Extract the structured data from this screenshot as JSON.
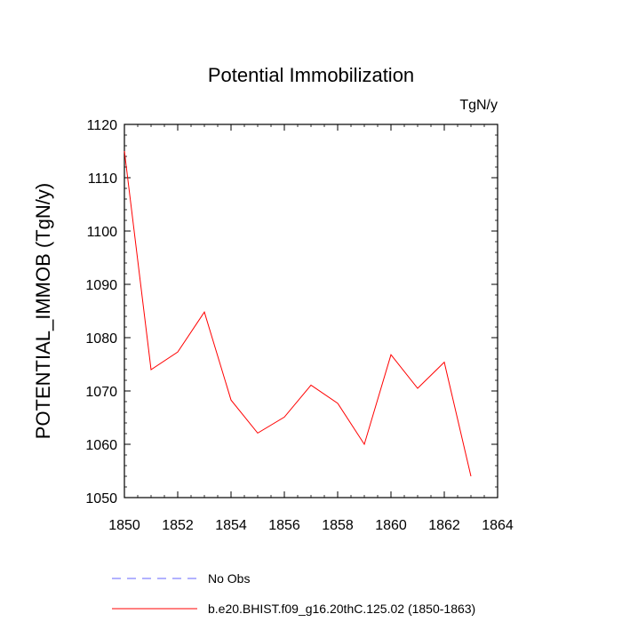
{
  "chart_data": {
    "type": "line",
    "title": "Potential Immobilization",
    "units_label": "TgN/y",
    "xlabel": "",
    "ylabel": "POTENTIAL_IMMOB  (TgN/y)",
    "xlim": [
      1850,
      1864
    ],
    "ylim": [
      1050,
      1120
    ],
    "x_ticks": [
      "1850",
      "1852",
      "1854",
      "1856",
      "1858",
      "1860",
      "1862",
      "1864"
    ],
    "y_ticks": [
      "1050",
      "1060",
      "1070",
      "1080",
      "1090",
      "1100",
      "1110",
      "1120"
    ],
    "series": [
      {
        "name": "b.e20.BHIST.f09_g16.20thC.125.02 (1850-1863)",
        "color": "#ff0000",
        "style": "solid",
        "x": [
          1850,
          1851,
          1852,
          1853,
          1854,
          1855,
          1856,
          1857,
          1858,
          1859,
          1860,
          1861,
          1862,
          1863
        ],
        "values": [
          1115.0,
          1074.0,
          1077.3,
          1084.8,
          1068.3,
          1062.1,
          1065.1,
          1071.1,
          1067.7,
          1060.0,
          1076.8,
          1070.5,
          1075.4,
          1054.0
        ]
      }
    ],
    "legend": [
      {
        "label": "No Obs",
        "color": "#6666ff",
        "style": "dashed"
      },
      {
        "label": "b.e20.BHIST.f09_g16.20thC.125.02 (1850-1863)",
        "color": "#ff0000",
        "style": "solid"
      }
    ],
    "legend_position": "bottom",
    "grid": false
  }
}
